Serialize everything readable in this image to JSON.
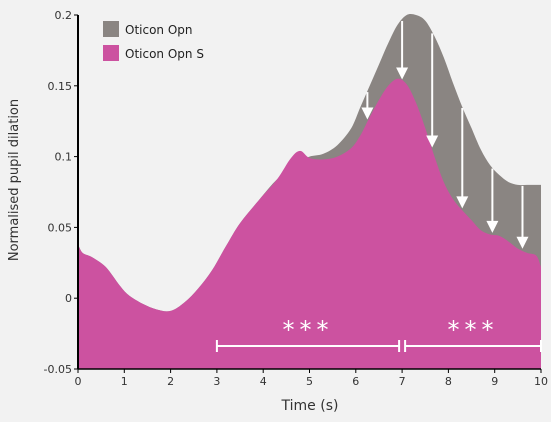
{
  "chart_data": {
    "type": "area",
    "xlabel": "Time (s)",
    "ylabel": "Normalised pupil dilation",
    "xlim": [
      0,
      10
    ],
    "ylim": [
      -0.05,
      0.2
    ],
    "x_ticks": [
      "0",
      "1",
      "2",
      "3",
      "4",
      "5",
      "6",
      "7",
      "8",
      "9",
      "10"
    ],
    "y_ticks": [
      {
        "value": -0.05,
        "label": "-0.05"
      },
      {
        "value": 0,
        "label": "0"
      },
      {
        "value": 0.05,
        "label": "0.05"
      },
      {
        "value": 0.1,
        "label": "0.1"
      },
      {
        "value": 0.15,
        "label": "0.15"
      },
      {
        "value": 0.2,
        "label": "0.2"
      }
    ],
    "grid": false,
    "legend_position": "top-left",
    "series": [
      {
        "name": "Oticon Opn",
        "color": "#8a8582",
        "x": [
          0,
          0.1,
          0.3,
          0.6,
          0.9,
          1.1,
          1.4,
          1.7,
          2.0,
          2.3,
          2.6,
          2.9,
          3.2,
          3.5,
          3.9,
          4.3,
          4.6,
          4.8,
          5.0,
          5.3,
          5.6,
          5.9,
          6.1,
          6.3,
          6.5,
          6.7,
          6.9,
          7.1,
          7.3,
          7.5,
          7.7,
          7.9,
          8.1,
          8.3,
          8.5,
          8.7,
          8.9,
          9.1,
          9.3,
          9.5,
          9.7,
          9.9,
          10.0
        ],
        "values": [
          0.038,
          0.032,
          0.029,
          0.022,
          0.009,
          0.002,
          -0.004,
          -0.008,
          -0.009,
          -0.003,
          0.007,
          0.02,
          0.037,
          0.053,
          0.069,
          0.084,
          0.091,
          0.097,
          0.1,
          0.102,
          0.108,
          0.12,
          0.135,
          0.15,
          0.165,
          0.18,
          0.193,
          0.2,
          0.2,
          0.196,
          0.185,
          0.17,
          0.152,
          0.135,
          0.12,
          0.105,
          0.094,
          0.087,
          0.082,
          0.08,
          0.08,
          0.08,
          0.08
        ]
      },
      {
        "name": "Oticon Opn S",
        "color": "#cc52a0",
        "x": [
          0,
          0.1,
          0.3,
          0.6,
          0.9,
          1.1,
          1.4,
          1.7,
          2.0,
          2.3,
          2.6,
          2.9,
          3.2,
          3.5,
          3.9,
          4.3,
          4.6,
          4.8,
          5.0,
          5.3,
          5.6,
          5.9,
          6.1,
          6.3,
          6.5,
          6.7,
          6.9,
          7.1,
          7.3,
          7.5,
          7.7,
          7.9,
          8.1,
          8.3,
          8.5,
          8.7,
          8.9,
          9.1,
          9.3,
          9.5,
          9.7,
          9.9,
          10.0
        ],
        "values": [
          0.038,
          0.032,
          0.029,
          0.022,
          0.009,
          0.002,
          -0.004,
          -0.008,
          -0.009,
          -0.003,
          0.007,
          0.02,
          0.037,
          0.053,
          0.069,
          0.084,
          0.099,
          0.104,
          0.099,
          0.098,
          0.1,
          0.106,
          0.115,
          0.128,
          0.14,
          0.15,
          0.155,
          0.151,
          0.138,
          0.12,
          0.1,
          0.082,
          0.07,
          0.062,
          0.055,
          0.048,
          0.045,
          0.044,
          0.04,
          0.035,
          0.032,
          0.03,
          0.022
        ]
      }
    ],
    "arrows_at_x": [
      6.25,
      7.0,
      7.65,
      8.3,
      8.95,
      9.6
    ],
    "significance": [
      {
        "label": "***",
        "x_start": 3.0,
        "x_end": 7.0
      },
      {
        "label": "***",
        "x_start": 7.0,
        "x_end": 10.0
      }
    ]
  }
}
